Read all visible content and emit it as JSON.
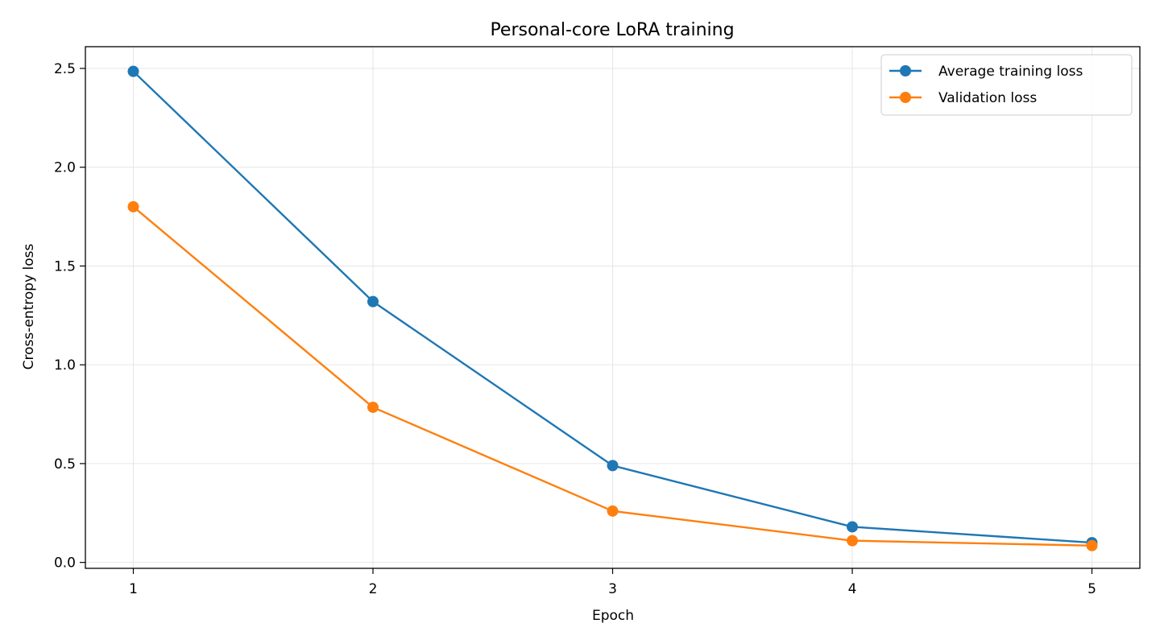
{
  "chart_data": {
    "type": "line",
    "title": "Personal-core LoRA training",
    "xlabel": "Epoch",
    "ylabel": "Cross-entropy loss",
    "x": [
      1,
      2,
      3,
      4,
      5
    ],
    "xticks": [
      "1",
      "2",
      "3",
      "4",
      "5"
    ],
    "yticks": [
      "0.0",
      "0.5",
      "1.0",
      "1.5",
      "2.0",
      "2.5"
    ],
    "ytick_values": [
      0.0,
      0.5,
      1.0,
      1.5,
      2.0,
      2.5
    ],
    "xlim": [
      0.8,
      5.2
    ],
    "ylim": [
      -0.03,
      2.61
    ],
    "grid": true,
    "legend_position": "top-right",
    "series": [
      {
        "name": "Average training loss",
        "color": "#1f77b4",
        "marker": "circle",
        "values": [
          2.485,
          1.32,
          0.49,
          0.18,
          0.1
        ]
      },
      {
        "name": "Validation loss",
        "color": "#ff7f0e",
        "marker": "circle",
        "values": [
          1.8,
          0.785,
          0.26,
          0.11,
          0.085
        ]
      }
    ]
  }
}
